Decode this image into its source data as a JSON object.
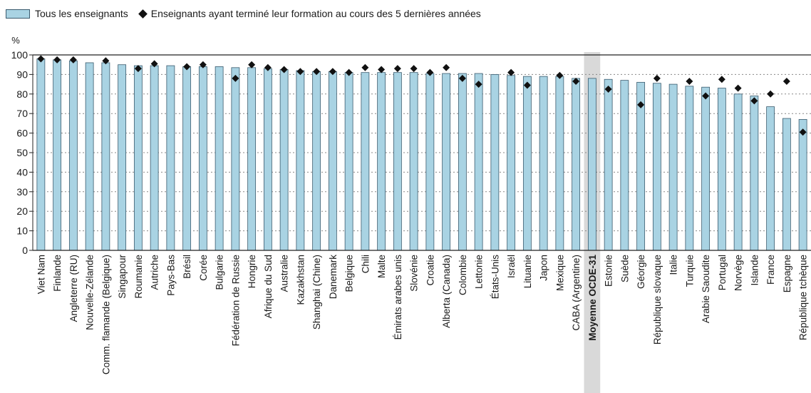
{
  "legend": {
    "bar_label": "Tous les enseignants",
    "marker_label": "Enseignants ayant terminé leur formation au cours des 5 dernières années"
  },
  "colors": {
    "bar_fill": "#a9d3e3",
    "bar_stroke": "#3b5b6e",
    "marker": "#111111",
    "highlight_band": "#d9d9d9"
  },
  "chart_data": {
    "type": "bar",
    "y_unit_label": "%",
    "ylim": [
      0,
      100
    ],
    "y_ticks": [
      0,
      10,
      20,
      30,
      40,
      50,
      60,
      70,
      80,
      90,
      100
    ],
    "grid": "horizontal dotted",
    "legend_position": "top-left",
    "highlight_category": "Moyenne OCDE-31",
    "categories": [
      "Viet Nam",
      "Finlande",
      "Angleterre (RU)",
      "Nouvelle-Zélande",
      "Comm. flamande (Belgique)",
      "Singapour",
      "Roumanie",
      "Autriche",
      "Pays-Bas",
      "Brésil",
      "Corée",
      "Bulgarie",
      "Fédération de Russie",
      "Hongrie",
      "Afrique du Sud",
      "Australie",
      "Kazakhstan",
      "Shanghai (Chine)",
      "Danemark",
      "Belgique",
      "Chili",
      "Malte",
      "Émirats arabes unis",
      "Slovénie",
      "Croatie",
      "Alberta (Canada)",
      "Colombie",
      "Lettonie",
      "États-Unis",
      "Israël",
      "Lituanie",
      "Japon",
      "Mexique",
      "CABA (Argentine)",
      "Moyenne OCDE-31",
      "Estonie",
      "Suède",
      "Géorgie",
      "République slovaque",
      "Italie",
      "Turquie",
      "Arabie Saoudite",
      "Portugal",
      "Norvège",
      "Islande",
      "France",
      "Espagne",
      "République tchèque"
    ],
    "series": [
      {
        "name": "Tous les enseignants",
        "values": [
          98,
          97.5,
          97,
          96,
          96,
          95,
          94.5,
          94.5,
          94.5,
          94,
          94,
          94,
          93.5,
          93.5,
          93,
          92.5,
          92,
          91.5,
          91.5,
          91,
          91,
          91,
          91,
          91,
          90.5,
          90.5,
          90.5,
          90.5,
          90,
          89.5,
          89,
          89,
          89,
          88,
          88,
          87.5,
          87,
          86,
          85.5,
          85,
          84,
          83.5,
          83,
          80,
          79,
          73.5,
          67.5,
          67
        ]
      },
      {
        "name": "Enseignants ayant terminé leur formation au cours des 5 dernières années",
        "values": [
          98,
          97.5,
          97.5,
          null,
          97,
          null,
          93,
          95.5,
          null,
          94,
          95,
          null,
          88,
          95,
          93.5,
          92.5,
          91.5,
          91.5,
          91.5,
          91,
          93.5,
          92.5,
          93,
          93,
          91,
          93.5,
          88,
          85,
          null,
          91,
          84.5,
          null,
          89.5,
          86.5,
          null,
          82.5,
          null,
          74.5,
          88,
          null,
          86.5,
          79,
          87.5,
          83,
          76.5,
          80,
          86.5,
          60.5
        ]
      }
    ]
  }
}
